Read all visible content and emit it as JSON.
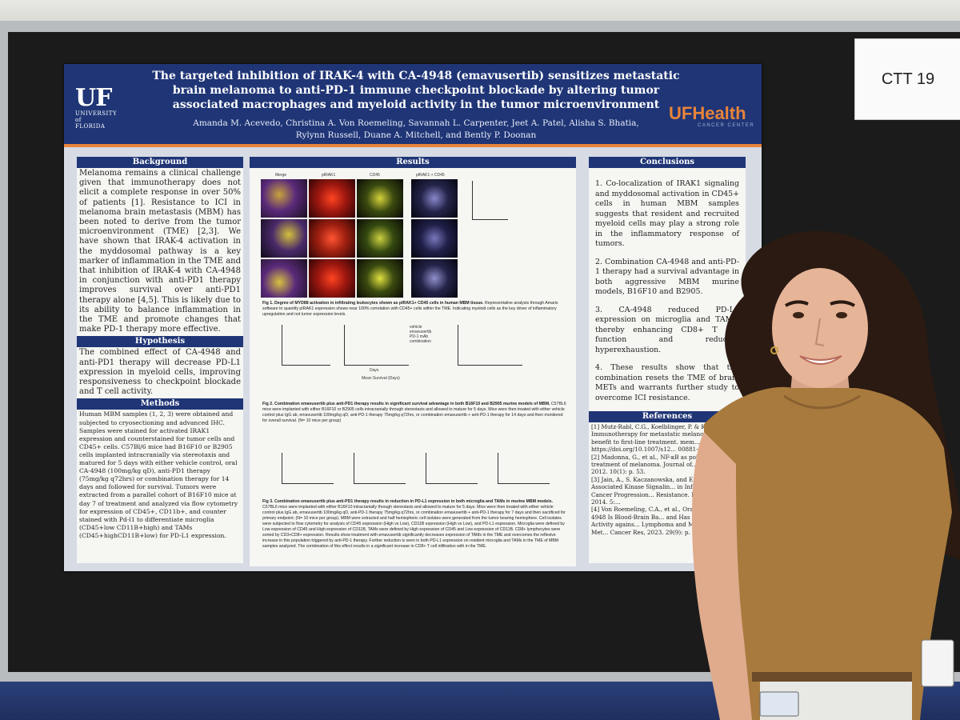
{
  "sign": {
    "label": "CTT 19"
  },
  "poster": {
    "logo_left": {
      "main": "UF",
      "sub1": "UNIVERSITY of",
      "sub2": "FLORIDA"
    },
    "logo_right": {
      "main": "UFHealth",
      "sub": "CANCER CENTER"
    },
    "title": "The targeted inhibition of IRAK-4 with CA-4948 (emavusertib) sensitizes metastatic brain melanoma to anti-PD-1 immune checkpoint blockade by altering tumor associated macrophages and myeloid activity in the tumor microenvironment",
    "authors_line1": "Amanda M. Acevedo, Christina A. Von Roemeling, Savannah L. Carpenter, Jeet A. Patel, Alisha S. Bhatia,",
    "authors_line2": "Rylynn Russell, Duane A. Mitchell, and Bently P. Doonan",
    "background": {
      "heading": "Background",
      "text": "Melanoma remains a clinical challenge given that immunotherapy does not elicit a complete response in over 50% of patients [1]. Resistance to ICI in melanoma brain metastasis (MBM) has been noted to derive from the tumor microenvironment (TME) [2,3]. We have shown that IRAK-4 activation in the myddosomal pathway is a key marker of inflammation in the TME and that inhibition of IRAK-4 with CA-4948 in conjunction with anti-PD1 therapy improves survival over anti-PD1 therapy alone [4,5]. This is likely due to its ability to balance inflammation in the TME and promote changes that make PD-1 therapy more effective."
    },
    "hypothesis": {
      "heading": "Hypothesis",
      "text": "The combined effect of CA-4948 and anti-PD1 therapy will decrease PD-L1 expression in myeloid cells, improving responsiveness to checkpoint blockade and T cell activity."
    },
    "methods": {
      "heading": "Methods",
      "text": "Human MBM samples (1, 2, 3) were obtained and subjected to cryosectioning and advanced IHC. Samples were stained for activated IRAK1 expression and counterstained for tumor cells and CD45+ cells. C57Bl/6 mice had B16F10 or B2905 cells implanted intracranially via stereotaxis and matured for 5 days with either vehicle control, oral CA-4948 (100mg/kg qD), anti-PD1 therapy (75mg/kg q72hrs) or combination therapy for 14 days and followed for survival. Tumors were extracted from a parallel cohort of B16F10 mice at day 7 of treatment and analyzed via flow cytometry for expression of CD45+, CD11b+, and counter stained with Pd-l1 to differentiate microglia (CD45+low CD11B+high) and TAMs (CD45+highCD11B+low) for PD-L1 expression."
    },
    "results": {
      "heading": "Results",
      "fig1_labels": [
        "Merge",
        "pIRAK1",
        "CD45",
        "pIRAK1 + CD45"
      ],
      "fig1_caption_bold": "Fig 1. Degree of MYD88 activation in infiltrating leukocytes shown as pIRAK1+ CD45 cells in human MBM tissue.",
      "fig1_caption": "Representative analysis through Amaris software to quantify pIRAK1 expression shows near 100% correlation with CD45+ cells within the TME. Indicating myeloid cells as the key driver of inflammatory upregulation and not tumor expression levels.",
      "fig2_caption_bold": "Fig 2. Combination emavusertib plus anti-PD1 therapy results in significant survival advantage in both B16F10 and B2905 murine models of MBM.",
      "fig2_caption": "C57BL6 mice were implanted with either B16F10 or B2905 cells intracranially through stereotaxis and allowed to mature for 5 days. Mice were then treated with either vehicle control plus IgG ab, emavusertib 100mg/kg qD, anti-PD-1 therapy 75mg/kg q72hrs, or combination emavusertib + anti-PD-1 therapy for 14 days and then monitored for overall survival. (N= 10 mice per group)",
      "legend": [
        "vehicle",
        "emavusertib",
        "PD-1 mAb",
        "combination"
      ],
      "axis_days": "Days",
      "mean_survival": "Mean Survival (Days)",
      "fig3_caption_bold": "Fig 3. Combination emavusertib plus anti-PD1 therapy results in reduction in PD-L1 expression in both microglia and TAMs in murine MBM models.",
      "fig3_caption": "C57BL6 mice were implanted with either B16F10 intracranially through stereotaxis and allowed to mature for 5 days. Mice were then treated with either vehicle control plus IgG ab, emavusertib 100mg/kg qD, anti-PD-1 therapy 75mg/kg q72hrs, or combination emavusertib + anti-PD-1 therapy for 7 days and then sacrificed for primary endpoint. (N= 10 mice per group). MBM were extracted and half hemispheric cell isolates were generated from the tumor bearing hemisphere. Cell isolates were subjected to flow cytometry for analysis of CD45 expression (High vs Low), CD11B expression (High vs Low), and PD-L1 expression. Microglia were defined by Low expression of CD45 and High expression of CD11B, TAMs were defined by High expression of CD45 and Low expression of CD11B. CD8+ lymphocytes were sorted by CD3+CD8+ expression. Results show treatment with emavusertib significantly decreases expression of TAMs in the TME and overcomes the reflexive increase in this population triggered by anti-PD-1 therapy. Further reduction is seen in both PD-L1 expression on resident microglia and TAMs in the TME of MBM samples analyzed. The combination of this effect results in a significant increase in CD8+ T cell infiltration with in the TME."
    },
    "conclusions": {
      "heading": "Conclusions",
      "items": [
        "1. Co-localization of IRAK1 signaling and myddosomal activation in CD45+ cells in human MBM samples suggests that resident and recruited myeloid cells may play a strong role in the inflammatory response of tumors.",
        "2. Combination CA-4948 and anti-PD-1 therapy had a survival advantage in both aggressive MBM murine models, B16F10 and B2905.",
        "3. CA-4948 reduced PD-L1 expression on microglia and TAMs, thereby enhancing CD8+ T cell function and reducing hyperexhaustion.",
        "4. These results show that the combination resets the TME of brain METs and warrants further study to overcome ICI resistance."
      ]
    },
    "references": {
      "heading": "References",
      "items": [
        "[1] Mutz-Rabl, C.G., Koelblinger, P. & Koo... Immunotherapy for metastatic melanom... little benefit to first-line treatment. mem... 112 (2023). https://doi.org/10.1007/s12... 00881-6",
        "[2] Madonna, G., et al., NF-κB as poten... the treatment of melanoma. Journal of... Medicine, 2012. 10(1): p. 53.",
        "[3] Jain, A., S. Kaczanowska, and E. ... Receptor-Associated Kinase Signalin... in Inflammation, Cancer Progression... Resistance. Front Immunol, 2014. 5:...",
        "[4] Von Roemeling, C.A., et al., Oral... Inhibitor CA-4948 Is Blood-Brain Ba... and Has Single-Agent Activity agains... Lymphoma and Melanoma Brain Met... Cancer Res, 2023. 29(9): p. 1751-1762..."
      ]
    }
  }
}
